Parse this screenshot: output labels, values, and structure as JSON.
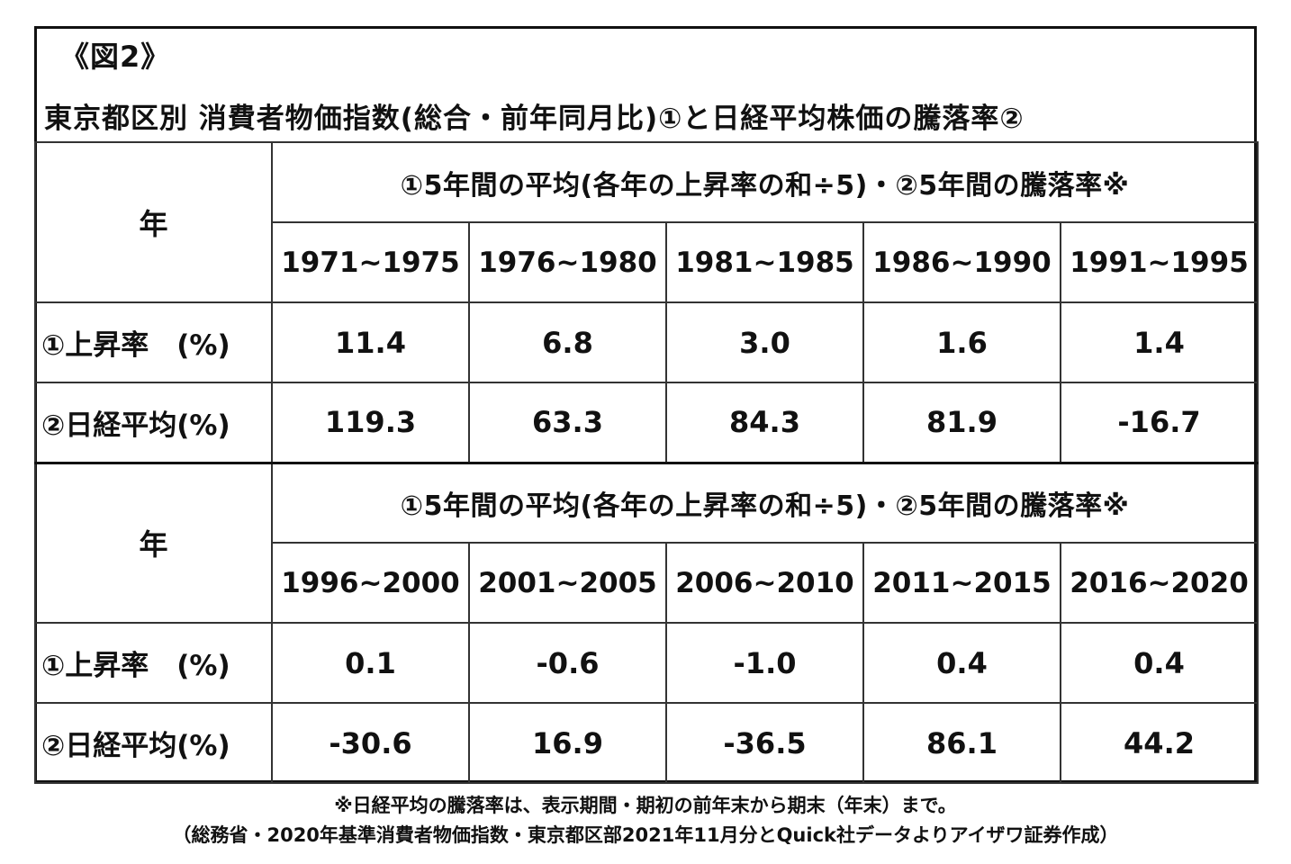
{
  "figure_label": "《図2》",
  "title": "東京都区別 消費者物価指数(総合・前年同月比)①と日経平均株価の騰落率②",
  "blocks": [
    {
      "year_header": "年",
      "span_header": "①5年間の平均(各年の上昇率の和÷5)・②5年間の騰落率※",
      "periods": [
        "1971~1975",
        "1976~1980",
        "1981~1985",
        "1986~1990",
        "1991~1995"
      ],
      "rows": [
        {
          "label": "①上昇率　(%)",
          "values": [
            "11.4",
            "6.8",
            "3.0",
            "1.6",
            "1.4"
          ]
        },
        {
          "label": "②日経平均(%)",
          "values": [
            "119.3",
            "63.3",
            "84.3",
            "81.9",
            "-16.7"
          ]
        }
      ]
    },
    {
      "year_header": "年",
      "span_header": "①5年間の平均(各年の上昇率の和÷5)・②5年間の騰落率※",
      "periods": [
        "1996~2000",
        "2001~2005",
        "2006~2010",
        "2011~2015",
        "2016~2020"
      ],
      "rows": [
        {
          "label": "①上昇率　(%)",
          "values": [
            "0.1",
            "-0.6",
            "-1.0",
            "0.4",
            "0.4"
          ]
        },
        {
          "label": "②日経平均(%)",
          "values": [
            "-30.6",
            "16.9",
            "-36.5",
            "86.1",
            "44.2"
          ]
        }
      ]
    }
  ],
  "footnotes": [
    "※日経平均の騰落率は、表示期間・期初の前年末から期末（年末）まで。",
    "（総務省・2020年基準消費者物価指数・東京都区部2021年11月分とQuick社データよりアイザワ証券作成）"
  ],
  "chart_data": {
    "type": "table",
    "title": "東京都区別 消費者物価指数(総合・前年同月比)①と日経平均株価の騰落率②",
    "categories": [
      "1971~1975",
      "1976~1980",
      "1981~1985",
      "1986~1990",
      "1991~1995",
      "1996~2000",
      "2001~2005",
      "2006~2010",
      "2011~2015",
      "2016~2020"
    ],
    "series": [
      {
        "name": "①上昇率　(%)",
        "values": [
          11.4,
          6.8,
          3.0,
          1.6,
          1.4,
          0.1,
          -0.6,
          -1.0,
          0.4,
          0.4
        ]
      },
      {
        "name": "②日経平均(%)",
        "values": [
          119.3,
          63.3,
          84.3,
          81.9,
          -16.7,
          -30.6,
          16.9,
          -36.5,
          86.1,
          44.2
        ]
      }
    ]
  }
}
